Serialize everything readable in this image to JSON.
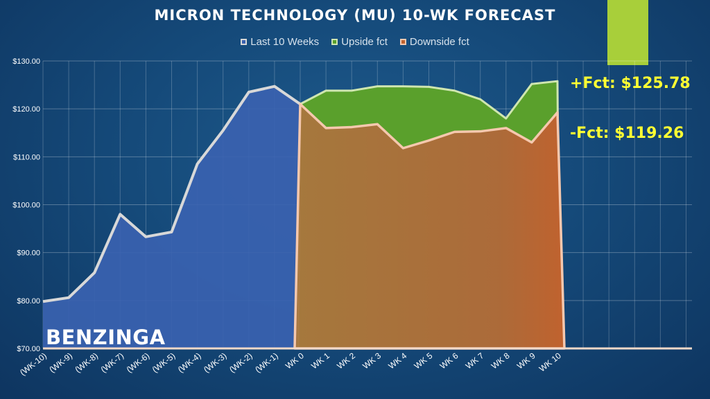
{
  "chart_data": {
    "type": "area",
    "title": "MICRON TECHNOLOGY (MU) 10-WK FORECAST",
    "categories": [
      "(WK-10)",
      "(WK-9)",
      "(WK-8)",
      "(WK-7)",
      "(WK-6)",
      "(WK-5)",
      "(WK-4)",
      "(WK-3)",
      "(WK-2)",
      "(WK-1)",
      "WK 0",
      "WK 1",
      "WK 2",
      "WK 3",
      "WK 4",
      "WK 5",
      "WK 6",
      "WK 7",
      "WK 8",
      "WK 9",
      "WK 10"
    ],
    "y_ticks": [
      "$70.00",
      "$80.00",
      "$90.00",
      "$100.00",
      "$110.00",
      "$120.00",
      "$130.00"
    ],
    "ylim": [
      70,
      130
    ],
    "grid": true,
    "legend_position": "top",
    "series": [
      {
        "name": "Last 10 Weeks",
        "color": "#3a62b0",
        "line_color": "#d8d8d8",
        "values": [
          79.8,
          80.6,
          85.8,
          98.0,
          93.3,
          94.3,
          108.5,
          115.5,
          123.5,
          124.7,
          121.0,
          null,
          null,
          null,
          null,
          null,
          null,
          null,
          null,
          null,
          null
        ]
      },
      {
        "name": "Upside fct",
        "color": "#5aa02c",
        "line_color": "#cfe6b0",
        "values": [
          null,
          null,
          null,
          null,
          null,
          null,
          null,
          null,
          null,
          null,
          121.0,
          123.8,
          123.8,
          124.7,
          124.7,
          124.6,
          123.8,
          122.0,
          118.0,
          125.2,
          125.78
        ]
      },
      {
        "name": "Downside fct",
        "color": "#c0622e",
        "line_color": "#f5c8ae",
        "values": [
          null,
          null,
          null,
          null,
          null,
          null,
          null,
          null,
          null,
          null,
          121.0,
          116.0,
          116.2,
          116.8,
          111.8,
          113.4,
          115.2,
          115.3,
          116.0,
          113.0,
          119.26
        ]
      }
    ],
    "annotations": {
      "upside_label": "+Fct: $125.78",
      "downside_label": "-Fct: $119.26"
    }
  },
  "brand": "BENZINGA"
}
